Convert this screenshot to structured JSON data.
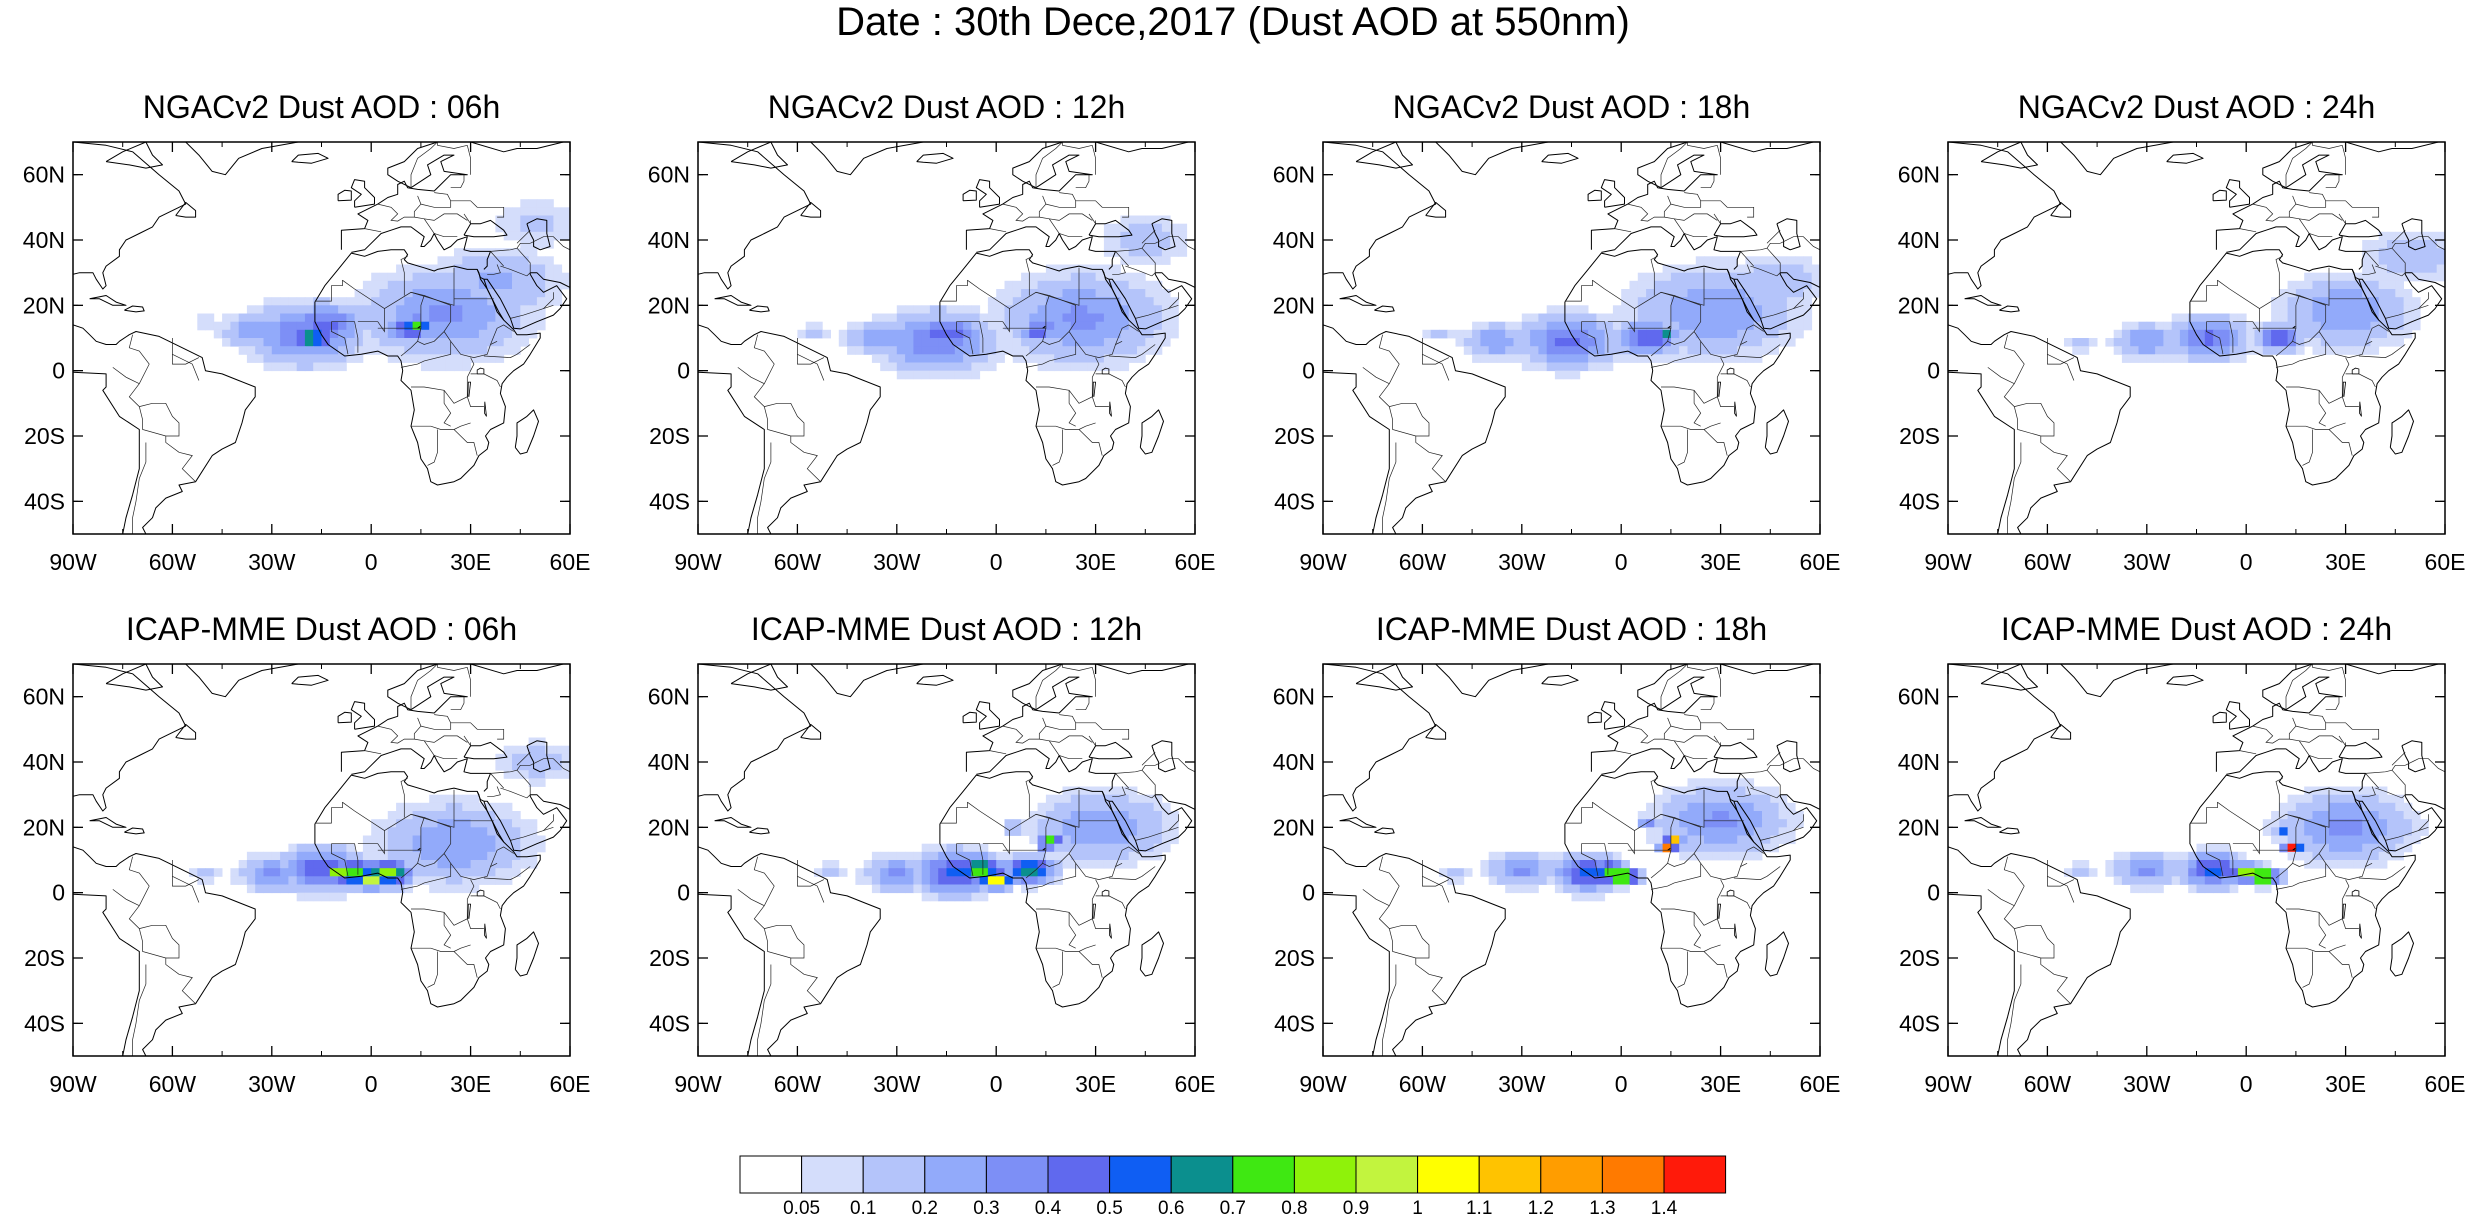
{
  "figure": {
    "title": "Date : 30th Dece,2017 (Dust AOD at 550nm)"
  },
  "map_extent": {
    "lon_min": -90,
    "lon_max": 60,
    "lat_min": -50,
    "lat_max": 70
  },
  "axes": {
    "lat_ticks": [
      {
        "value": 60,
        "label": "60N"
      },
      {
        "value": 40,
        "label": "40N"
      },
      {
        "value": 20,
        "label": "20N"
      },
      {
        "value": 0,
        "label": "0"
      },
      {
        "value": -20,
        "label": "20S"
      },
      {
        "value": -40,
        "label": "40S"
      }
    ],
    "lon_ticks": [
      {
        "value": -90,
        "label": "90W"
      },
      {
        "value": -60,
        "label": "60W"
      },
      {
        "value": -30,
        "label": "30W"
      },
      {
        "value": 0,
        "label": "0"
      },
      {
        "value": 30,
        "label": "30E"
      },
      {
        "value": 60,
        "label": "60E"
      }
    ]
  },
  "panels": [
    {
      "title": "NGACv2 Dust AOD : 06h",
      "model": "NGACv2",
      "lead": "06h"
    },
    {
      "title": "NGACv2 Dust AOD : 12h",
      "model": "NGACv2",
      "lead": "12h"
    },
    {
      "title": "NGACv2 Dust AOD : 18h",
      "model": "NGACv2",
      "lead": "18h"
    },
    {
      "title": "NGACv2 Dust AOD : 24h",
      "model": "NGACv2",
      "lead": "24h"
    },
    {
      "title": "ICAP-MME Dust AOD : 06h",
      "model": "ICAP-MME",
      "lead": "06h"
    },
    {
      "title": "ICAP-MME Dust AOD : 12h",
      "model": "ICAP-MME",
      "lead": "12h"
    },
    {
      "title": "ICAP-MME Dust AOD : 18h",
      "model": "ICAP-MME",
      "lead": "18h"
    },
    {
      "title": "ICAP-MME Dust AOD : 24h",
      "model": "ICAP-MME",
      "lead": "24h"
    }
  ],
  "colorbar": {
    "boundary_labels": [
      "0.05",
      "0.1",
      "0.2",
      "0.3",
      "0.4",
      "0.5",
      "0.6",
      "0.7",
      "0.8",
      "0.9",
      "1",
      "1.1",
      "1.2",
      "1.3",
      "1.4"
    ],
    "colors": [
      "#ffffff",
      "#d4ddfb",
      "#b4c4fa",
      "#92aafa",
      "#7d8ff6",
      "#6069ee",
      "#0f5ef3",
      "#0b8f8e",
      "#3fe812",
      "#8ff20a",
      "#c2f43e",
      "#ffff00",
      "#ffc300",
      "#ff9d00",
      "#ff7a00",
      "#ff1a0a"
    ]
  },
  "dust_fields": [
    {
      "blobs": [
        [
          -50,
          15,
          2,
          0.12
        ],
        [
          -35,
          12,
          4,
          0.3
        ],
        [
          -20,
          11,
          7,
          0.4
        ],
        [
          -14,
          14,
          5,
          0.45
        ],
        [
          -18,
          10,
          3,
          0.7
        ],
        [
          12,
          13,
          3,
          0.55
        ],
        [
          14,
          14,
          2,
          0.75
        ],
        [
          22,
          17,
          10,
          0.32
        ],
        [
          38,
          27,
          8,
          0.22
        ],
        [
          50,
          45,
          6,
          0.12
        ]
      ]
    },
    {
      "blobs": [
        [
          -55,
          12,
          2,
          0.12
        ],
        [
          -35,
          10,
          4,
          0.3
        ],
        [
          -18,
          9,
          7,
          0.4
        ],
        [
          -15,
          11,
          4,
          0.5
        ],
        [
          12,
          12,
          2,
          0.55
        ],
        [
          15,
          13,
          1,
          0.72
        ],
        [
          26,
          16,
          10,
          0.32
        ],
        [
          45,
          40,
          6,
          0.15
        ]
      ]
    },
    {
      "blobs": [
        [
          -55,
          11,
          2,
          0.12
        ],
        [
          -38,
          9,
          4,
          0.3
        ],
        [
          -16,
          9,
          6,
          0.42
        ],
        [
          8,
          10,
          4,
          0.5
        ],
        [
          14,
          11,
          1,
          0.72
        ],
        [
          28,
          18,
          10,
          0.3
        ],
        [
          48,
          28,
          6,
          0.18
        ]
      ]
    },
    {
      "blobs": [
        [
          -50,
          8,
          2,
          0.15
        ],
        [
          -30,
          9,
          4,
          0.3
        ],
        [
          -12,
          10,
          5,
          0.42
        ],
        [
          10,
          10,
          3,
          0.55
        ],
        [
          12,
          12,
          1,
          0.72
        ],
        [
          30,
          18,
          8,
          0.3
        ],
        [
          50,
          35,
          6,
          0.2
        ]
      ]
    },
    {
      "blobs": [
        [
          -50,
          6,
          2,
          0.15
        ],
        [
          -30,
          6,
          4,
          0.32
        ],
        [
          -15,
          7,
          5,
          0.5
        ],
        [
          -10,
          6,
          2,
          0.88
        ],
        [
          -5,
          6,
          3,
          0.82
        ],
        [
          0,
          4,
          2,
          1.0
        ],
        [
          5,
          6,
          3,
          0.85
        ],
        [
          25,
          15,
          9,
          0.3
        ],
        [
          50,
          40,
          5,
          0.15
        ]
      ]
    },
    {
      "blobs": [
        [
          -50,
          7,
          2,
          0.15
        ],
        [
          -30,
          6,
          4,
          0.32
        ],
        [
          -12,
          6,
          5,
          0.55
        ],
        [
          -5,
          7,
          3,
          0.85
        ],
        [
          0,
          4,
          2,
          1.1
        ],
        [
          10,
          7,
          3,
          0.75
        ],
        [
          15,
          15,
          1,
          1.4
        ],
        [
          17,
          17,
          1,
          1.25
        ],
        [
          5,
          20,
          1,
          0.6
        ],
        [
          32,
          20,
          8,
          0.3
        ]
      ]
    },
    {
      "blobs": [
        [
          -50,
          6,
          2,
          0.15
        ],
        [
          -30,
          7,
          4,
          0.32
        ],
        [
          -10,
          6,
          4,
          0.6
        ],
        [
          -4,
          7,
          2,
          0.85
        ],
        [
          0,
          5,
          2,
          1.1
        ],
        [
          14,
          14,
          1,
          1.45
        ],
        [
          16,
          16,
          1,
          1.25
        ],
        [
          8,
          22,
          1,
          0.6
        ],
        [
          30,
          22,
          8,
          0.32
        ]
      ]
    },
    {
      "blobs": [
        [
          -50,
          7,
          2,
          0.15
        ],
        [
          -30,
          7,
          4,
          0.32
        ],
        [
          -10,
          7,
          4,
          0.55
        ],
        [
          0,
          6,
          2,
          0.9
        ],
        [
          5,
          5,
          2,
          1.0
        ],
        [
          14,
          14,
          1,
          1.5
        ],
        [
          11,
          18,
          1,
          0.75
        ],
        [
          30,
          20,
          8,
          0.32
        ]
      ]
    }
  ]
}
